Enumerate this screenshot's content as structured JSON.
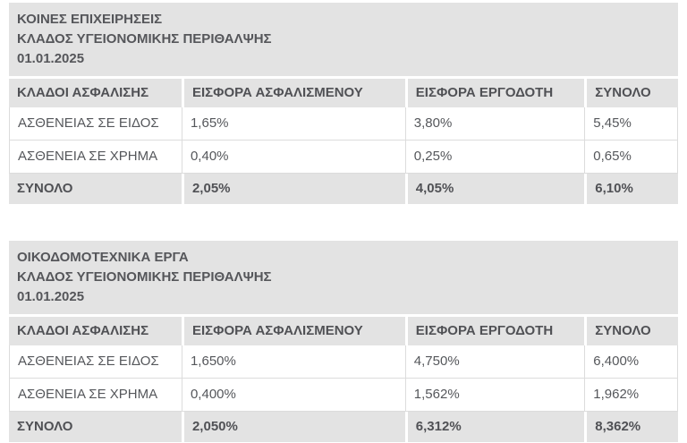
{
  "colors": {
    "block_background": "#e3e3e3",
    "cell_border": "#dcdcdc",
    "text": "#55575b"
  },
  "tables": [
    {
      "title_lines": [
        "ΚΟΙΝΕΣ ΕΠΙΧΕΙΡΗΣΕΙΣ",
        "ΚΛΑΔΟΣ ΥΓΕΙΟΝΟΜΙΚΗΣ ΠΕΡΙΘΑΛΨΗΣ",
        "01.01.2025"
      ],
      "columns": [
        "ΚΛΑΔΟΙ ΑΣΦΑΛΙΣΗΣ",
        "ΕΙΣΦΟΡΑ ΑΣΦΑΛΙΣΜΕΝΟΥ",
        "ΕΙΣΦΟΡΑ ΕΡΓΟΔΟΤΗ",
        "ΣΥΝΟΛΟ"
      ],
      "rows": [
        [
          "ΑΣΘΕΝΕΙΑΣ ΣΕ ΕΙΔΟΣ",
          "1,65%",
          "3,80%",
          "5,45%"
        ],
        [
          "ΑΣΘΕΝΕΙΑ ΣΕ ΧΡΗΜΑ",
          "0,40%",
          "0,25%",
          "0,65%"
        ]
      ],
      "total": [
        "ΣΥΝΟΛΟ",
        "2,05%",
        "4,05%",
        "6,10%"
      ]
    },
    {
      "title_lines": [
        "ΟΙΚΟΔΟΜΟΤΕΧΝΙΚΑ ΕΡΓΑ",
        "ΚΛΑΔΟΣ ΥΓΕΙΟΝΟΜΙΚΗΣ ΠΕΡΙΘΑΛΨΗΣ",
        "01.01.2025"
      ],
      "columns": [
        "ΚΛΑΔΟΙ ΑΣΦΑΛΙΣΗΣ",
        "ΕΙΣΦΟΡΑ ΑΣΦΑΛΙΣΜΕΝΟΥ",
        "ΕΙΣΦΟΡΑ ΕΡΓΟΔΟΤΗ",
        "ΣΥΝΟΛΟ"
      ],
      "rows": [
        [
          "ΑΣΘΕΝΕΙΑΣ ΣΕ ΕΙΔΟΣ",
          "1,650%",
          "4,750%",
          "6,400%"
        ],
        [
          "ΑΣΘΕΝΕΙΑ ΣΕ ΧΡΗΜΑ",
          "0,400%",
          "1,562%",
          "1,962%"
        ]
      ],
      "total": [
        "ΣΥΝΟΛΟ",
        "2,050%",
        "6,312%",
        "8,362%"
      ]
    }
  ]
}
